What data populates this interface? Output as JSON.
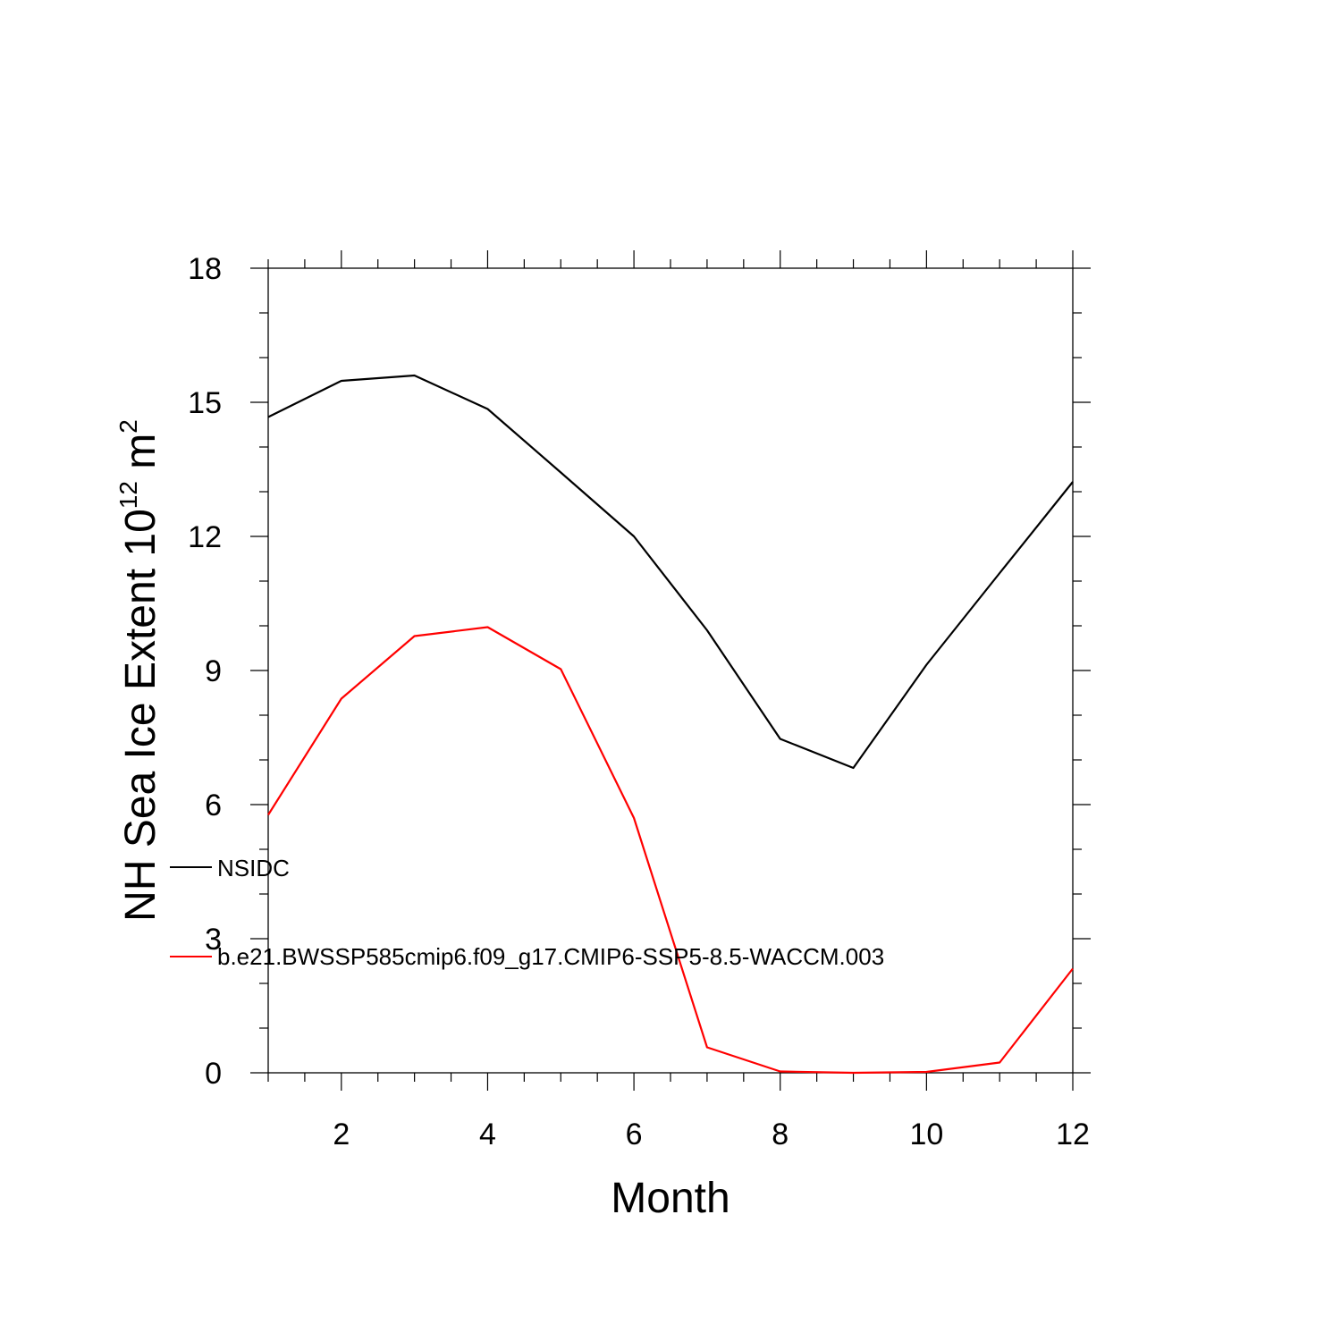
{
  "chart_data": {
    "type": "line",
    "x": [
      1,
      2,
      3,
      4,
      5,
      6,
      7,
      8,
      9,
      10,
      11,
      12
    ],
    "xlabel": "Month",
    "ylabel_main": "NH Sea Ice Extent 10",
    "ylabel_exponent": "12",
    "ylabel_unit": " m",
    "ylabel_unit_exponent": "2",
    "xlim": [
      1,
      12
    ],
    "ylim": [
      0,
      18
    ],
    "x_ticks": [
      2,
      4,
      6,
      8,
      10,
      12
    ],
    "y_ticks": [
      0,
      3,
      6,
      9,
      12,
      15,
      18
    ],
    "grid": false,
    "legend_position": "left",
    "series": [
      {
        "name": "NSIDC",
        "color": "#000000",
        "values": [
          14.67,
          15.48,
          15.6,
          14.85,
          13.43,
          12.0,
          9.9,
          7.47,
          6.82,
          9.13,
          11.18,
          13.22
        ]
      },
      {
        "name": "b.e21.BWSSP585cmip6.f09_g17.CMIP6-SSP5-8.5-WACCM.003",
        "color": "#ff0000",
        "values": [
          5.77,
          8.37,
          9.77,
          9.97,
          9.03,
          5.7,
          0.57,
          0.03,
          0.0,
          0.02,
          0.23,
          2.33
        ]
      }
    ]
  }
}
